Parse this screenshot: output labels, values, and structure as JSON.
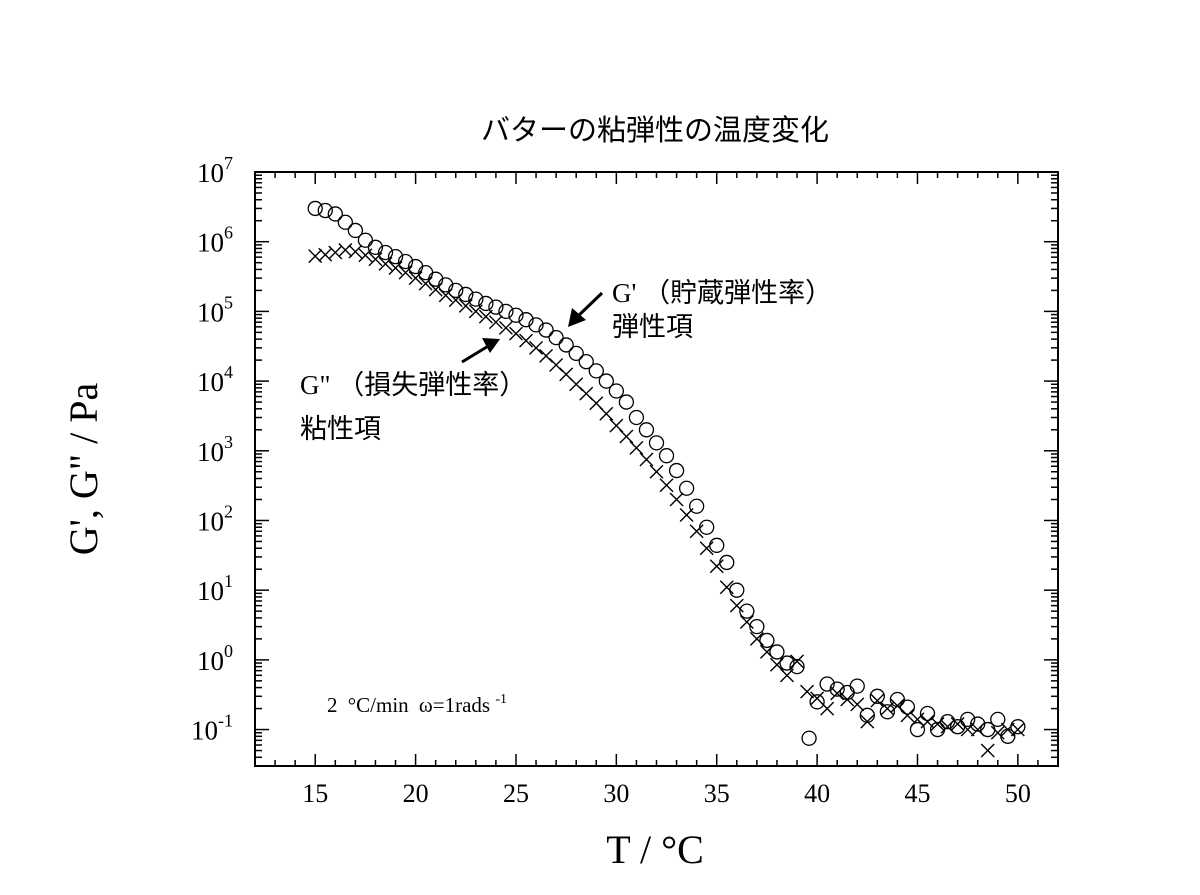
{
  "chart_data": {
    "type": "scatter",
    "title": "バターの粘弾性の温度変化",
    "xlabel": "T / °C",
    "ylabel": "G', G\" / Pa",
    "x_scale": "linear",
    "y_scale": "log",
    "xlim": [
      12,
      52
    ],
    "ylim": [
      0.03,
      10000000
    ],
    "x_ticks": [
      15,
      20,
      25,
      30,
      35,
      40,
      45,
      50
    ],
    "y_tick_exponents": [
      -1,
      0,
      1,
      2,
      3,
      4,
      5,
      6,
      7
    ],
    "condition_note": {
      "rate": "2",
      "rate_unit": "°C/min",
      "omega": "ω=1rads",
      "omega_exponent": "-1"
    },
    "annotations": [
      {
        "series": "G'",
        "label": "G'  （貯蔵弾性率）",
        "sublabel": "弾性項"
      },
      {
        "series": "G\"",
        "label": "G\" （損失弾性率）",
        "sublabel": "粘性項"
      }
    ],
    "series": [
      {
        "name": "G'",
        "marker": "circle",
        "points": [
          [
            15.0,
            3000000
          ],
          [
            15.5,
            2800000
          ],
          [
            16.0,
            2500000
          ],
          [
            16.5,
            1900000
          ],
          [
            17.0,
            1450000
          ],
          [
            17.5,
            1050000
          ],
          [
            18.0,
            830000
          ],
          [
            18.5,
            700000
          ],
          [
            19.0,
            610000
          ],
          [
            19.5,
            520000
          ],
          [
            20.0,
            440000
          ],
          [
            20.5,
            360000
          ],
          [
            21.0,
            290000
          ],
          [
            21.5,
            240000
          ],
          [
            22.0,
            200000
          ],
          [
            22.5,
            175000
          ],
          [
            23.0,
            150000
          ],
          [
            23.5,
            130000
          ],
          [
            24.0,
            115000
          ],
          [
            24.5,
            100000
          ],
          [
            25.0,
            88000
          ],
          [
            25.5,
            76000
          ],
          [
            26.0,
            64000
          ],
          [
            26.5,
            54000
          ],
          [
            27.0,
            42000
          ],
          [
            27.5,
            33000
          ],
          [
            28.0,
            25000
          ],
          [
            28.5,
            19000
          ],
          [
            29.0,
            14000
          ],
          [
            29.5,
            10000
          ],
          [
            30.0,
            7200
          ],
          [
            30.5,
            5000
          ],
          [
            31.0,
            3000
          ],
          [
            31.5,
            2000
          ],
          [
            32.0,
            1300
          ],
          [
            32.5,
            850
          ],
          [
            33.0,
            520
          ],
          [
            33.5,
            290
          ],
          [
            34.0,
            160
          ],
          [
            34.5,
            80
          ],
          [
            35.0,
            44
          ],
          [
            35.5,
            25
          ],
          [
            36.0,
            10
          ],
          [
            36.5,
            5
          ],
          [
            37.0,
            3
          ],
          [
            37.5,
            1.9
          ],
          [
            38.0,
            1.3
          ],
          [
            38.5,
            0.9
          ],
          [
            39.0,
            0.8
          ],
          [
            39.6,
            0.075
          ],
          [
            40.0,
            0.25
          ],
          [
            40.5,
            0.45
          ],
          [
            41.0,
            0.38
          ],
          [
            41.5,
            0.34
          ],
          [
            42.0,
            0.42
          ],
          [
            42.5,
            0.16
          ],
          [
            43.0,
            0.3
          ],
          [
            43.5,
            0.18
          ],
          [
            44.0,
            0.27
          ],
          [
            44.5,
            0.21
          ],
          [
            45.0,
            0.1
          ],
          [
            45.5,
            0.17
          ],
          [
            46.0,
            0.1
          ],
          [
            46.5,
            0.13
          ],
          [
            47.0,
            0.11
          ],
          [
            47.5,
            0.14
          ],
          [
            48.0,
            0.12
          ],
          [
            48.5,
            0.1
          ],
          [
            49.0,
            0.14
          ],
          [
            49.5,
            0.08
          ],
          [
            50.0,
            0.11
          ]
        ]
      },
      {
        "name": "G\"",
        "marker": "cross",
        "points": [
          [
            15.0,
            620000
          ],
          [
            15.5,
            650000
          ],
          [
            16.0,
            700000
          ],
          [
            16.5,
            760000
          ],
          [
            17.0,
            720000
          ],
          [
            17.5,
            640000
          ],
          [
            18.0,
            560000
          ],
          [
            18.5,
            480000
          ],
          [
            19.0,
            420000
          ],
          [
            19.5,
            360000
          ],
          [
            20.0,
            300000
          ],
          [
            20.5,
            250000
          ],
          [
            21.0,
            205000
          ],
          [
            21.5,
            170000
          ],
          [
            22.0,
            145000
          ],
          [
            22.5,
            120000
          ],
          [
            23.0,
            100000
          ],
          [
            23.5,
            84000
          ],
          [
            24.0,
            70000
          ],
          [
            24.5,
            58000
          ],
          [
            25.0,
            48000
          ],
          [
            25.5,
            38000
          ],
          [
            26.0,
            30000
          ],
          [
            26.5,
            23000
          ],
          [
            27.0,
            17000
          ],
          [
            27.5,
            12500
          ],
          [
            28.0,
            9000
          ],
          [
            28.5,
            6600
          ],
          [
            29.0,
            4800
          ],
          [
            29.5,
            3400
          ],
          [
            30.0,
            2300
          ],
          [
            30.5,
            1600
          ],
          [
            31.0,
            1100
          ],
          [
            31.5,
            750
          ],
          [
            32.0,
            500
          ],
          [
            32.5,
            320
          ],
          [
            33.0,
            200
          ],
          [
            33.5,
            120
          ],
          [
            34.0,
            70
          ],
          [
            34.5,
            40
          ],
          [
            35.0,
            22
          ],
          [
            35.5,
            11
          ],
          [
            36.0,
            6
          ],
          [
            36.5,
            3.5
          ],
          [
            37.0,
            2
          ],
          [
            37.5,
            1.3
          ],
          [
            38.0,
            0.85
          ],
          [
            38.5,
            0.6
          ],
          [
            39.0,
            0.95
          ],
          [
            39.5,
            0.35
          ],
          [
            40.0,
            0.28
          ],
          [
            40.5,
            0.2
          ],
          [
            41.0,
            0.33
          ],
          [
            41.5,
            0.27
          ],
          [
            42.0,
            0.23
          ],
          [
            42.5,
            0.13
          ],
          [
            43.0,
            0.26
          ],
          [
            43.5,
            0.2
          ],
          [
            44.0,
            0.22
          ],
          [
            44.5,
            0.16
          ],
          [
            45.0,
            0.14
          ],
          [
            45.5,
            0.13
          ],
          [
            46.0,
            0.12
          ],
          [
            46.5,
            0.11
          ],
          [
            47.0,
            0.12
          ],
          [
            47.5,
            0.1
          ],
          [
            48.0,
            0.1
          ],
          [
            48.5,
            0.05
          ],
          [
            49.0,
            0.09
          ],
          [
            49.5,
            0.1
          ],
          [
            50.0,
            0.1
          ]
        ]
      }
    ]
  }
}
